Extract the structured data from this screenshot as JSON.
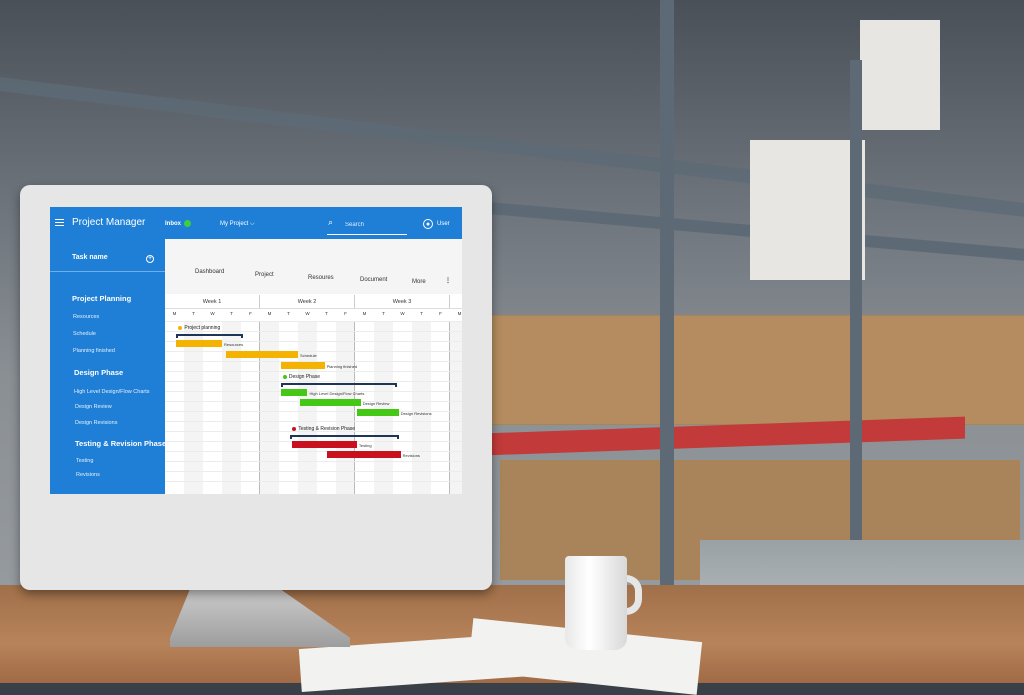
{
  "app": {
    "title": "Project Manager",
    "inbox_label": "Inbox",
    "inbox_count": "1",
    "project_menu": "My Project ⌵",
    "search_placeholder": "Search",
    "user_label": "User"
  },
  "sidebar": {
    "task_header": "Task name",
    "add_icon": "plus-circle-icon",
    "groups": [
      {
        "title": "Project Planning",
        "items": [
          "Resources",
          "Schedule",
          "Planning finished"
        ]
      },
      {
        "title": "Design Phase",
        "items": [
          "High Level Design/Flow Charts",
          "Design Review",
          "Design Revisions"
        ]
      },
      {
        "title": "Testing & Revision Phase",
        "items": [
          "Testing",
          "Revisions"
        ]
      }
    ]
  },
  "tabs": [
    "Dashboard",
    "Project",
    "Resoures",
    "Document",
    "More"
  ],
  "gantt": {
    "weeks": [
      "Week 1",
      "Week 2",
      "Week 3",
      ""
    ],
    "days": [
      "M",
      "T",
      "W",
      "T",
      "F",
      "M",
      "T",
      "W",
      "T",
      "F",
      "M",
      "T",
      "W",
      "T",
      "F",
      "M",
      "T"
    ],
    "groups": [
      {
        "title": "Project planning",
        "color": "#f5b301",
        "row": 0,
        "start": 0.6,
        "end": 4.1,
        "tasks": [
          {
            "name": "Resources",
            "row": 1.5,
            "start": 0.6,
            "end": 3.0
          },
          {
            "name": "Schedule",
            "row": 2.6,
            "start": 3.2,
            "end": 7.0
          },
          {
            "name": "Planning finished",
            "row": 3.7,
            "start": 6.1,
            "end": 8.4
          }
        ]
      },
      {
        "title": "Design Phase",
        "color": "#44c715",
        "row": 4.9,
        "start": 6.1,
        "end": 12.2,
        "tasks": [
          {
            "name": "High Level Design/Flow Charts",
            "row": 6.4,
            "start": 6.1,
            "end": 7.5
          },
          {
            "name": "Design Review",
            "row": 7.4,
            "start": 7.1,
            "end": 10.3
          },
          {
            "name": "Design Revisions",
            "row": 8.4,
            "start": 10.1,
            "end": 12.3
          }
        ]
      },
      {
        "title": "Testing & Revision Phase",
        "color": "#c8101e",
        "row": 10.1,
        "start": 6.6,
        "end": 12.3,
        "tasks": [
          {
            "name": "Testing",
            "row": 11.6,
            "start": 6.7,
            "end": 10.1
          },
          {
            "name": "Revisions",
            "row": 12.6,
            "start": 8.5,
            "end": 12.4
          }
        ]
      }
    ]
  }
}
